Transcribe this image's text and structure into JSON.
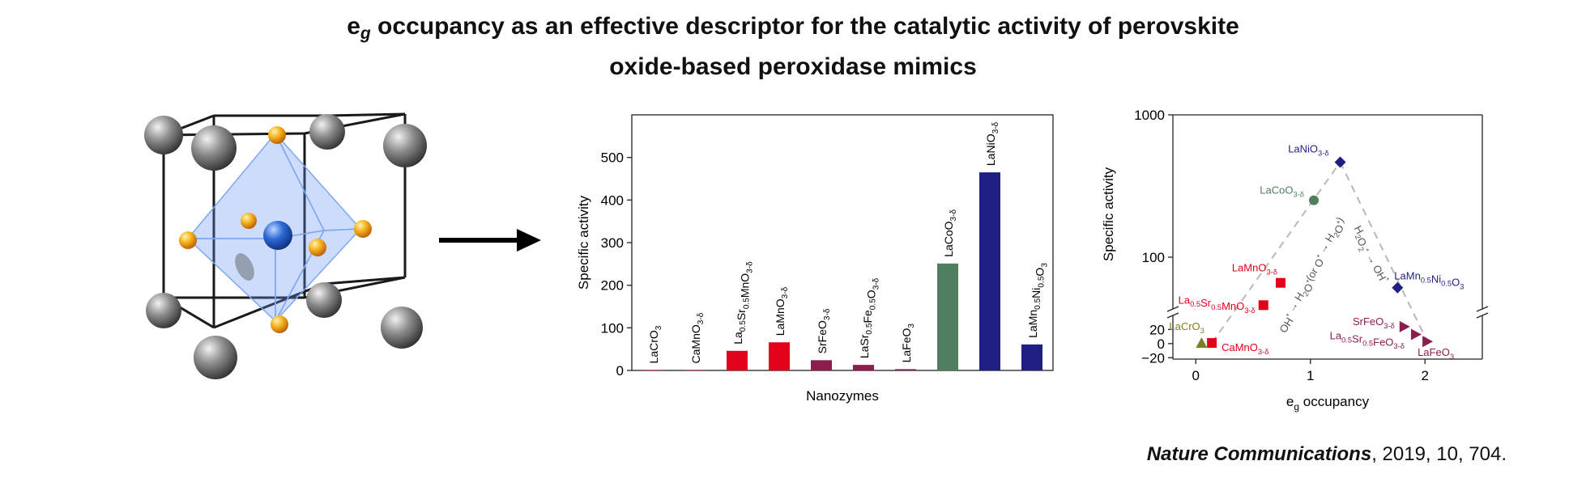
{
  "header": {
    "title_prefix": "e",
    "title_sub": "g",
    "title_line1_rest": " occupancy as an effective descriptor for the catalytic activity of perovskite",
    "title_line2": "oxide-based peroxidase mimics"
  },
  "citation": {
    "journal": "Nature Communications",
    "details": ", 2019, 10, 704."
  },
  "colors": {
    "red": "#e3001b",
    "maroon": "#8b1e4e",
    "green": "#4f7f5e",
    "navy": "#1f1f82",
    "olive": "#7d7d24",
    "crystal_blue": "#3a6fd8",
    "crystal_gold": "#f3a21a"
  },
  "chart_data": [
    {
      "type": "bar",
      "xlabel": "Nanozymes",
      "ylabel": "Specific activity",
      "ylim": [
        0,
        600
      ],
      "yticks": [
        0,
        100,
        200,
        300,
        400,
        500
      ],
      "categories": [
        "LaCrO3",
        "CaMnO3-δ",
        "La0.5Sr0.5MnO3-δ",
        "LaMnO3-δ",
        "SrFeO3-δ",
        "LaSr0.5Fe0.5O3-δ",
        "LaFeO3",
        "LaCoO3-δ",
        "LaNiO3-δ",
        "LaMn0.5Ni0.5O3"
      ],
      "category_labels_display": [
        [
          [
            "LaCrO",
            ""
          ],
          [
            "3",
            "sub"
          ]
        ],
        [
          [
            "CaMnO",
            ""
          ],
          [
            "3-δ",
            "sub"
          ]
        ],
        [
          [
            "La",
            ""
          ],
          [
            "0.5",
            "sub"
          ],
          [
            "Sr",
            ""
          ],
          [
            "0.5",
            "sub"
          ],
          [
            "MnO",
            ""
          ],
          [
            "3-δ",
            "sub"
          ]
        ],
        [
          [
            "LaMnO",
            ""
          ],
          [
            "3-δ",
            "sub"
          ]
        ],
        [
          [
            "SrFeO",
            ""
          ],
          [
            "3-δ",
            "sub"
          ]
        ],
        [
          [
            "LaSr",
            ""
          ],
          [
            "0.5",
            "sub"
          ],
          [
            "Fe",
            ""
          ],
          [
            "0.5",
            "sub"
          ],
          [
            "O",
            ""
          ],
          [
            "3-δ",
            "sub"
          ]
        ],
        [
          [
            "LaFeO",
            ""
          ],
          [
            "3",
            "sub"
          ]
        ],
        [
          [
            "LaCoO",
            ""
          ],
          [
            "3-δ",
            "sub"
          ]
        ],
        [
          [
            "LaNiO",
            ""
          ],
          [
            "3-δ",
            "sub"
          ]
        ],
        [
          [
            "LaMn",
            ""
          ],
          [
            "0.5",
            "sub"
          ],
          [
            "Ni",
            ""
          ],
          [
            "0.5",
            "sub"
          ],
          [
            "O",
            ""
          ],
          [
            "3",
            "sub"
          ]
        ]
      ],
      "values": [
        1,
        1,
        46,
        66,
        24,
        13,
        3,
        251,
        465,
        61
      ],
      "bar_colors": [
        "#e3001b",
        "#e3001b",
        "#e3001b",
        "#e3001b",
        "#8b1e4e",
        "#8b1e4e",
        "#8b1e4e",
        "#4f7f5e",
        "#1f1f82",
        "#1f1f82"
      ]
    },
    {
      "type": "scatter",
      "xlabel_main": "e",
      "xlabel_sub": "g",
      "xlabel_rest": " occupancy",
      "ylabel": "Specific activity",
      "xlim": [
        -0.2,
        2.5
      ],
      "xticks": [
        0,
        1,
        2
      ],
      "yticks_log": [
        100,
        1000
      ],
      "yticks_linear": [
        20,
        0,
        -20
      ],
      "y_scale": "broken: linear -20..40 below break, log 40..1000 above break",
      "points": [
        {
          "name": "LaCrO3",
          "x": 0.05,
          "y": 1,
          "marker": "triangle-up",
          "color": "#7d7d24",
          "label": [
            [
              "LaCrO",
              ""
            ],
            [
              "3",
              "sub"
            ]
          ]
        },
        {
          "name": "CaMnO3-δ",
          "x": 0.14,
          "y": 1,
          "marker": "square",
          "color": "#e3001b",
          "label": [
            [
              "CaMnO",
              ""
            ],
            [
              "3-δ",
              "sub"
            ]
          ]
        },
        {
          "name": "La0.5Sr0.5MnO3-δ",
          "x": 0.59,
          "y": 46,
          "marker": "square",
          "color": "#e3001b",
          "label": [
            [
              "La",
              ""
            ],
            [
              "0.5",
              "sub"
            ],
            [
              "Sr",
              ""
            ],
            [
              "0.5",
              "sub"
            ],
            [
              "MnO",
              ""
            ],
            [
              "3-δ",
              "sub"
            ]
          ]
        },
        {
          "name": "LaMnO3-δ",
          "x": 0.74,
          "y": 66,
          "marker": "square",
          "color": "#e3001b",
          "label": [
            [
              "LaMnO",
              ""
            ],
            [
              "3-δ",
              "sub"
            ]
          ]
        },
        {
          "name": "LaCoO3-δ",
          "x": 1.03,
          "y": 251,
          "marker": "circle",
          "color": "#4f7f5e",
          "label": [
            [
              "LaCoO",
              ""
            ],
            [
              "3-δ",
              "sub"
            ]
          ]
        },
        {
          "name": "LaNiO3-δ",
          "x": 1.26,
          "y": 465,
          "marker": "diamond",
          "color": "#1f1f82",
          "label": [
            [
              "LaNiO",
              ""
            ],
            [
              "3-δ",
              "sub"
            ]
          ]
        },
        {
          "name": "LaMn0.5Ni0.5O3",
          "x": 1.76,
          "y": 61,
          "marker": "diamond",
          "color": "#1f1f82",
          "label": [
            [
              "LaMn",
              ""
            ],
            [
              "0.5",
              "sub"
            ],
            [
              "Ni",
              ""
            ],
            [
              "0.5",
              "sub"
            ],
            [
              "O",
              ""
            ],
            [
              "3",
              "sub"
            ]
          ]
        },
        {
          "name": "SrFeO3-δ",
          "x": 1.82,
          "y": 24,
          "marker": "triangle-right",
          "color": "#8b1e4e",
          "label": [
            [
              "SrFeO",
              ""
            ],
            [
              "3-δ",
              "sub"
            ]
          ]
        },
        {
          "name": "La0.5Sr0.5FeO3-δ",
          "x": 1.92,
          "y": 13,
          "marker": "triangle-right",
          "color": "#8b1e4e",
          "label": [
            [
              "La",
              ""
            ],
            [
              "0.5",
              "sub"
            ],
            [
              "Sr",
              ""
            ],
            [
              "0.5",
              "sub"
            ],
            [
              "FeO",
              ""
            ],
            [
              "3-δ",
              "sub"
            ]
          ]
        },
        {
          "name": "LaFeO3",
          "x": 2.02,
          "y": 3,
          "marker": "triangle-right",
          "color": "#8b1e4e",
          "label": [
            [
              "LaFeO",
              ""
            ],
            [
              "3",
              "sub"
            ]
          ]
        }
      ],
      "annotations": [
        {
          "text": [
            [
              "OH",
              ""
            ],
            [
              "*",
              "sup"
            ],
            [
              " → H",
              ""
            ],
            [
              "2",
              "sub"
            ],
            [
              "O",
              ""
            ],
            [
              "*",
              "sup"
            ],
            [
              "(or O",
              ""
            ],
            [
              "*",
              "sup"
            ],
            [
              " → H",
              ""
            ],
            [
              "2",
              "sub"
            ],
            [
              "O",
              ""
            ],
            [
              "*",
              "sup"
            ],
            [
              ")",
              ""
            ]
          ]
        },
        {
          "text": [
            [
              "H",
              ""
            ],
            [
              "2",
              "sub"
            ],
            [
              "O",
              ""
            ],
            [
              "2",
              "sub"
            ],
            [
              "*",
              "sup"
            ],
            [
              " → OH",
              ""
            ],
            [
              "*",
              "sup"
            ]
          ]
        }
      ]
    }
  ]
}
